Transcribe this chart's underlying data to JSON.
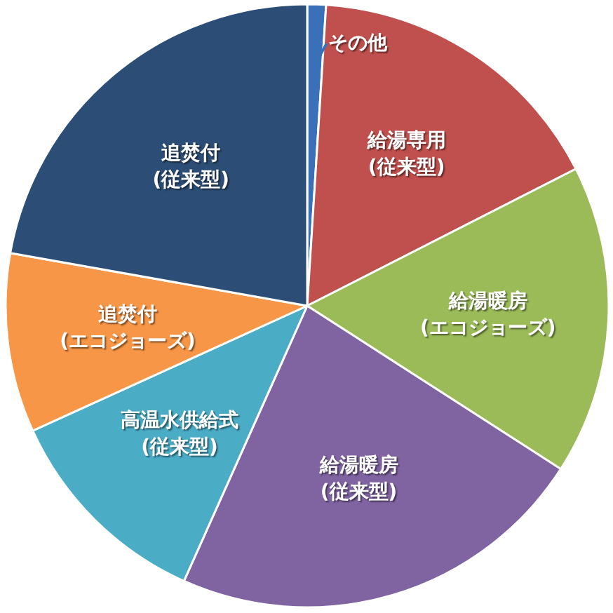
{
  "chart_data": {
    "type": "pie",
    "categories": [
      "その他",
      "給湯専用 (従来型)",
      "給湯暖房 (エコジョーズ)",
      "給湯暖房 (従来型)",
      "高温水供給式 (従来型)",
      "追焚付 (エコジョーズ)",
      "追焚付 (従来型)"
    ],
    "values": [
      1,
      16.5,
      16.6,
      22.6,
      11.5,
      9.6,
      22.2
    ],
    "colors": [
      "#3a70b8",
      "#c0504d",
      "#9bbb59",
      "#8064a2",
      "#4bacc6",
      "#f79646",
      "#2c4d75"
    ]
  }
}
